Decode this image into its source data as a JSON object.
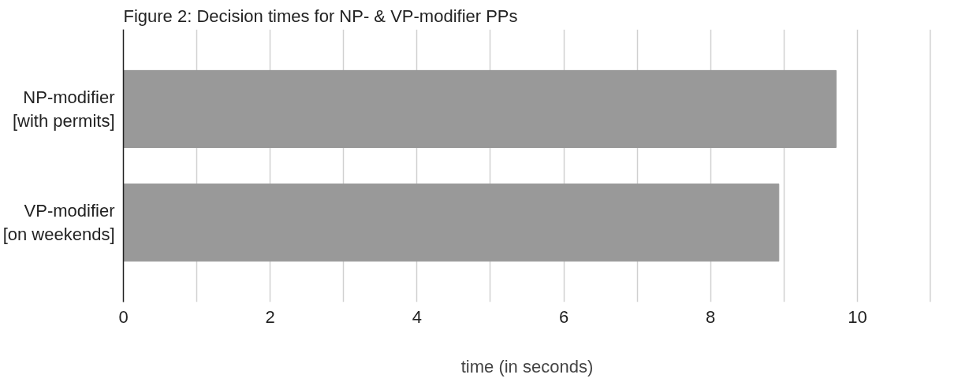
{
  "chart_data": {
    "type": "bar",
    "orientation": "horizontal",
    "title": "Figure 2:  Decision times for NP- & VP-modifier PPs",
    "xlabel": "time (in seconds)",
    "categories": [
      "NP-modifier\n[with permits]",
      "VP-modifier\n[on weekends]"
    ],
    "values": [
      9.71,
      8.93
    ],
    "color": "#999999",
    "xlim": [
      0,
      11
    ],
    "xticks": [
      0,
      {
        "value": 1,
        "label": null
      },
      2,
      {
        "value": 3,
        "label": null
      },
      4,
      {
        "value": 5,
        "label": null
      },
      6,
      {
        "value": 7,
        "label": null
      },
      8,
      {
        "value": 9,
        "label": null
      },
      10,
      {
        "value": 11,
        "label": null
      }
    ],
    "grid": "x"
  }
}
